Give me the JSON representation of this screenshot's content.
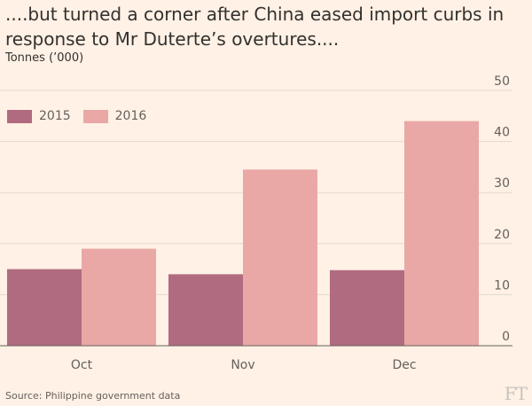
{
  "title": "....but turned a corner after China eased import curbs in response to Mr Duterte’s overtures....",
  "subtitle": "Tonnes (’000)",
  "source": "Source: Philippine government data",
  "logo": "FT",
  "colors": {
    "background": "#fff1e5",
    "series_2015": "#b16b80",
    "series_2016": "#e9a8a6",
    "grid": "#e1d9d2",
    "axis": "#66605c"
  },
  "chart_data": {
    "type": "bar",
    "title": "....but turned a corner after China eased import curbs in response to Mr Duterte’s overtures....",
    "xlabel": "",
    "ylabel": "Tonnes (’000)",
    "categories": [
      "Oct",
      "Nov",
      "Dec"
    ],
    "series": [
      {
        "name": "2015",
        "values": [
          15,
          14,
          14.8
        ]
      },
      {
        "name": "2016",
        "values": [
          19,
          34.5,
          44
        ]
      }
    ],
    "ylim": [
      0,
      50
    ],
    "yticks": [
      0,
      10,
      20,
      30,
      40,
      50
    ],
    "y_axis_side": "right",
    "grid": true,
    "legend": "top-left"
  }
}
